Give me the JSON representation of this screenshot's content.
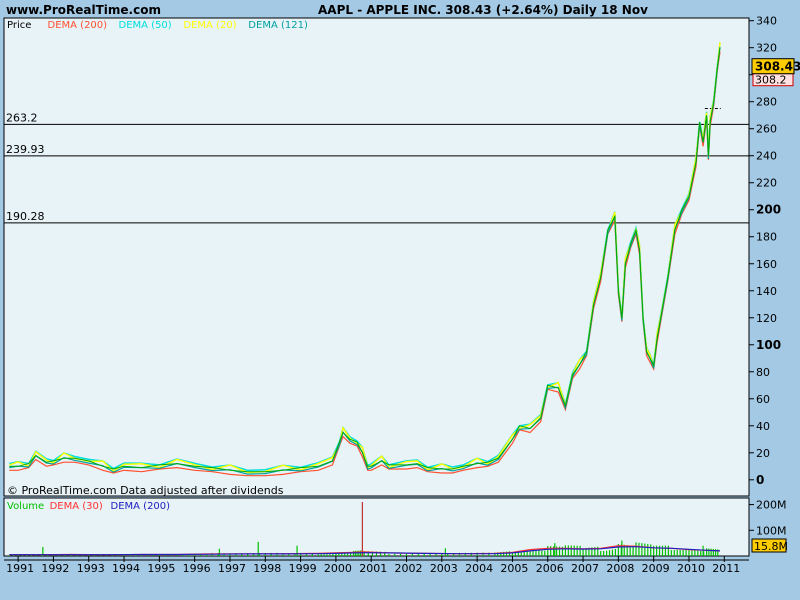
{
  "header": {
    "site": "www.ProRealTime.com",
    "title": "AAPL - APPLE INC.    308.43 (+2.64%)    Daily  18 Nov"
  },
  "footnote": "© ProRealTime.com  Data adjusted after dividends",
  "colors": {
    "background": "#a3c9e5",
    "panel": "#e8f3f7",
    "price": "#00aa00",
    "dema200": "#ff5030",
    "dema50": "#00dddd",
    "dema20": "#ffff00",
    "dema121": "#00a0a0",
    "volume": "#00c000",
    "vol_dema30": "#ff3030",
    "vol_dema200": "#2020c0",
    "price_badge": "#ffcc00"
  },
  "chart_data": [
    {
      "type": "line",
      "title": "AAPL - APPLE INC.    308.43 (+2.64%)    Daily  18 Nov",
      "legend": [
        "Price",
        "DEMA (200)",
        "DEMA (50)",
        "DEMA (20)",
        "DEMA (121)"
      ],
      "x": [
        1990.75,
        1991.0,
        1991.3,
        1991.5,
        1991.8,
        1992.0,
        1992.3,
        1992.6,
        1993.0,
        1993.4,
        1993.7,
        1994.0,
        1994.5,
        1995.0,
        1995.5,
        1996.0,
        1996.5,
        1997.0,
        1997.5,
        1998.0,
        1998.5,
        1999.0,
        1999.5,
        1999.9,
        2000.1,
        2000.2,
        2000.4,
        2000.6,
        2000.75,
        2000.9,
        2001.0,
        2001.3,
        2001.5,
        2002.0,
        2002.3,
        2002.6,
        2003.0,
        2003.3,
        2003.6,
        2004.0,
        2004.3,
        2004.6,
        2005.0,
        2005.2,
        2005.5,
        2005.8,
        2006.0,
        2006.3,
        2006.5,
        2006.7,
        2006.9,
        2007.1,
        2007.3,
        2007.5,
        2007.7,
        2007.9,
        2008.0,
        2008.1,
        2008.2,
        2008.35,
        2008.5,
        2008.6,
        2008.7,
        2008.8,
        2008.9,
        2009.0,
        2009.1,
        2009.2,
        2009.4,
        2009.6,
        2009.8,
        2010.0,
        2010.2,
        2010.3,
        2010.4,
        2010.5,
        2010.55,
        2010.6,
        2010.7,
        2010.8,
        2010.88
      ],
      "price": [
        10,
        10,
        12,
        18,
        13,
        14,
        16,
        16,
        14,
        10,
        8,
        10,
        9,
        11,
        12,
        10,
        9,
        7,
        6,
        6,
        7,
        9,
        10,
        14,
        28,
        35,
        30,
        28,
        20,
        10,
        10,
        14,
        11,
        11,
        12,
        9,
        8,
        8,
        10,
        12,
        13,
        16,
        30,
        40,
        38,
        46,
        70,
        68,
        55,
        78,
        85,
        95,
        130,
        150,
        185,
        195,
        140,
        120,
        160,
        175,
        185,
        170,
        120,
        95,
        90,
        85,
        105,
        120,
        150,
        185,
        200,
        210,
        235,
        265,
        250,
        270,
        240,
        265,
        280,
        305,
        320
      ],
      "dema200_offset": -3,
      "series_note": "Price line with overlaid DEMA (200), DEMA (50), DEMA (20) and DEMA (121) following the price",
      "levels": [
        {
          "label": "263.2",
          "value": 263.2
        },
        {
          "label": "239.93",
          "value": 239.93
        },
        {
          "label": "190.28",
          "value": 190.28
        }
      ],
      "last_price_label": "308.43",
      "prev_price_label": "308.2",
      "dashed_level": 275,
      "yticks": [
        {
          "label": "340",
          "value": 340,
          "bold": false
        },
        {
          "label": "320",
          "value": 320,
          "bold": false
        },
        {
          "label": "300",
          "value": 300,
          "bold": true
        },
        {
          "label": "280",
          "value": 280,
          "bold": false
        },
        {
          "label": "260",
          "value": 260,
          "bold": false
        },
        {
          "label": "240",
          "value": 240,
          "bold": false
        },
        {
          "label": "220",
          "value": 220,
          "bold": false
        },
        {
          "label": "200",
          "value": 200,
          "bold": true
        },
        {
          "label": "180",
          "value": 180,
          "bold": false
        },
        {
          "label": "160",
          "value": 160,
          "bold": false
        },
        {
          "label": "140",
          "value": 140,
          "bold": false
        },
        {
          "label": "120",
          "value": 120,
          "bold": false
        },
        {
          "label": "100",
          "value": 100,
          "bold": true
        },
        {
          "label": "80",
          "value": 80,
          "bold": false
        },
        {
          "label": "60",
          "value": 60,
          "bold": false
        },
        {
          "label": "40",
          "value": 40,
          "bold": false
        },
        {
          "label": "20",
          "value": 20,
          "bold": false
        },
        {
          "label": "0",
          "value": 0,
          "bold": true
        }
      ],
      "ylim": [
        -12,
        342
      ],
      "xlim": [
        1990.6,
        2011.7
      ]
    },
    {
      "type": "bar",
      "legend": [
        "Volume",
        "DEMA (30)",
        "DEMA (200)"
      ],
      "x": [
        1990.75,
        1991.5,
        1992.5,
        1993.5,
        1994.5,
        1995.5,
        1996.5,
        1997.5,
        1998.5,
        1999.5,
        2000.0,
        2000.5,
        2000.8,
        2001.5,
        2002.5,
        2003.5,
        2004.5,
        2005.0,
        2005.5,
        2006.0,
        2006.5,
        2007.0,
        2007.5,
        2008.0,
        2008.5,
        2009.0,
        2009.5,
        2010.0,
        2010.5,
        2010.88
      ],
      "volume_dema30": [
        5,
        5,
        6,
        5,
        6,
        6,
        8,
        8,
        9,
        10,
        12,
        14,
        16,
        12,
        10,
        9,
        10,
        14,
        25,
        30,
        30,
        28,
        30,
        40,
        38,
        32,
        30,
        25,
        22,
        20
      ],
      "volume_dema200": [
        5,
        5,
        5,
        5,
        6,
        6,
        7,
        8,
        8,
        9,
        10,
        12,
        13,
        12,
        10,
        9,
        9,
        12,
        20,
        26,
        28,
        27,
        28,
        35,
        36,
        32,
        30,
        26,
        22,
        20
      ],
      "volume_spikes": [
        {
          "x": 1991.7,
          "value": 35
        },
        {
          "x": 1996.7,
          "value": 28
        },
        {
          "x": 1997.8,
          "value": 55
        },
        {
          "x": 1998.9,
          "value": 40
        },
        {
          "x": 2000.75,
          "value": 210
        },
        {
          "x": 2003.1,
          "value": 30
        },
        {
          "x": 2006.2,
          "value": 50
        },
        {
          "x": 2008.1,
          "value": 60
        },
        {
          "x": 2010.4,
          "value": 40
        }
      ],
      "last_volume_label": "15.8M",
      "yticks": [
        {
          "label": "200M",
          "value": 200
        },
        {
          "label": "100M",
          "value": 100
        }
      ],
      "ylim": [
        0,
        210
      ]
    }
  ],
  "xticks": [
    {
      "label": "1991",
      "value": 1991
    },
    {
      "label": "1992",
      "value": 1992
    },
    {
      "label": "1993",
      "value": 1993
    },
    {
      "label": "1994",
      "value": 1994
    },
    {
      "label": "1995",
      "value": 1995
    },
    {
      "label": "1996",
      "value": 1996
    },
    {
      "label": "1997",
      "value": 1997
    },
    {
      "label": "1998",
      "value": 1998
    },
    {
      "label": "1999",
      "value": 1999
    },
    {
      "label": "2000",
      "value": 2000
    },
    {
      "label": "2001",
      "value": 2001
    },
    {
      "label": "2002",
      "value": 2002
    },
    {
      "label": "2003",
      "value": 2003
    },
    {
      "label": "2004",
      "value": 2004
    },
    {
      "label": "2005",
      "value": 2005
    },
    {
      "label": "2006",
      "value": 2006
    },
    {
      "label": "2007",
      "value": 2007
    },
    {
      "label": "2008",
      "value": 2008
    },
    {
      "label": "2009",
      "value": 2009
    },
    {
      "label": "2010",
      "value": 2010
    },
    {
      "label": "2011",
      "value": 2011
    }
  ]
}
